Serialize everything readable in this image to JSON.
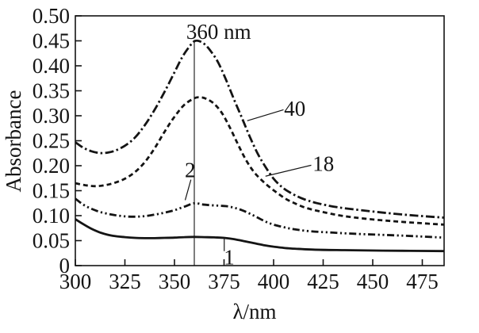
{
  "figure": {
    "background": "#ffffff",
    "ink_color": "#141414"
  },
  "chart_data": {
    "type": "line",
    "title": "",
    "xlabel": "λ/nm",
    "ylabel": "Absorbance",
    "xlim": [
      300,
      486
    ],
    "ylim": [
      0,
      0.5
    ],
    "grid": false,
    "legend_position": "none",
    "x_ticks": {
      "values": [
        300,
        325,
        350,
        375,
        400,
        425,
        450,
        475
      ],
      "labels": [
        "300",
        "325",
        "350",
        "375",
        "400",
        "425",
        "450",
        "475"
      ]
    },
    "y_ticks": {
      "values": [
        0,
        0.05,
        0.1,
        0.15,
        0.2,
        0.25,
        0.3,
        0.35,
        0.4,
        0.45,
        0.5
      ],
      "labels": [
        "0",
        "0.05",
        "0.10",
        "0.15",
        "0.20",
        "0.25",
        "0.30",
        "0.35",
        "0.40",
        "0.45",
        "0.50"
      ]
    },
    "vline": {
      "nm": 360,
      "top_A": 0.452,
      "bottom_A": 0,
      "label": "360 nm",
      "label_nm": 372.3,
      "label_A": 0.468
    },
    "series": [
      {
        "name": "1",
        "line_style": "solid",
        "points": [
          [
            300,
            0.093
          ],
          [
            304,
            0.083
          ],
          [
            308,
            0.074
          ],
          [
            312,
            0.067
          ],
          [
            316,
            0.062
          ],
          [
            320,
            0.059
          ],
          [
            325,
            0.057
          ],
          [
            330,
            0.0555
          ],
          [
            335,
            0.055
          ],
          [
            340,
            0.055
          ],
          [
            345,
            0.0555
          ],
          [
            350,
            0.056
          ],
          [
            355,
            0.057
          ],
          [
            360,
            0.0575
          ],
          [
            365,
            0.057
          ],
          [
            370,
            0.0565
          ],
          [
            375,
            0.0555
          ],
          [
            380,
            0.053
          ],
          [
            385,
            0.049
          ],
          [
            390,
            0.045
          ],
          [
            395,
            0.041
          ],
          [
            400,
            0.038
          ],
          [
            405,
            0.0355
          ],
          [
            410,
            0.034
          ],
          [
            420,
            0.032
          ],
          [
            435,
            0.031
          ],
          [
            455,
            0.03
          ],
          [
            486,
            0.029
          ]
        ]
      },
      {
        "name": "2",
        "line_style": "dash-dot-dot",
        "points": [
          [
            300,
            0.134
          ],
          [
            304,
            0.122
          ],
          [
            308,
            0.114
          ],
          [
            312,
            0.108
          ],
          [
            316,
            0.104
          ],
          [
            320,
            0.101
          ],
          [
            325,
            0.0985
          ],
          [
            330,
            0.098
          ],
          [
            335,
            0.099
          ],
          [
            340,
            0.102
          ],
          [
            345,
            0.106
          ],
          [
            350,
            0.111
          ],
          [
            355,
            0.118
          ],
          [
            360,
            0.125
          ],
          [
            364,
            0.1225
          ],
          [
            368,
            0.121
          ],
          [
            372,
            0.12
          ],
          [
            376,
            0.119
          ],
          [
            380,
            0.116
          ],
          [
            384,
            0.111
          ],
          [
            388,
            0.104
          ],
          [
            392,
            0.096
          ],
          [
            396,
            0.088
          ],
          [
            400,
            0.082
          ],
          [
            405,
            0.077
          ],
          [
            410,
            0.073
          ],
          [
            418,
            0.069
          ],
          [
            430,
            0.066
          ],
          [
            445,
            0.063
          ],
          [
            465,
            0.06
          ],
          [
            486,
            0.056
          ]
        ]
      },
      {
        "name": "18",
        "line_style": "dashed",
        "points": [
          [
            300,
            0.165
          ],
          [
            305,
            0.161
          ],
          [
            310,
            0.159
          ],
          [
            315,
            0.161
          ],
          [
            320,
            0.166
          ],
          [
            325,
            0.174
          ],
          [
            330,
            0.187
          ],
          [
            335,
            0.207
          ],
          [
            340,
            0.235
          ],
          [
            345,
            0.268
          ],
          [
            350,
            0.298
          ],
          [
            355,
            0.322
          ],
          [
            360,
            0.335
          ],
          [
            363,
            0.337
          ],
          [
            366,
            0.334
          ],
          [
            370,
            0.324
          ],
          [
            374,
            0.305
          ],
          [
            378,
            0.276
          ],
          [
            382,
            0.243
          ],
          [
            386,
            0.212
          ],
          [
            390,
            0.188
          ],
          [
            394,
            0.171
          ],
          [
            398,
            0.157
          ],
          [
            402,
            0.145
          ],
          [
            406,
            0.134
          ],
          [
            410,
            0.126
          ],
          [
            416,
            0.116
          ],
          [
            424,
            0.108
          ],
          [
            434,
            0.1
          ],
          [
            446,
            0.094
          ],
          [
            460,
            0.089
          ],
          [
            474,
            0.085
          ],
          [
            486,
            0.082
          ]
        ]
      },
      {
        "name": "40",
        "line_style": "dash-dot",
        "points": [
          [
            300,
            0.247
          ],
          [
            304,
            0.236
          ],
          [
            308,
            0.229
          ],
          [
            312,
            0.2255
          ],
          [
            316,
            0.226
          ],
          [
            320,
            0.23
          ],
          [
            325,
            0.24
          ],
          [
            330,
            0.256
          ],
          [
            335,
            0.281
          ],
          [
            340,
            0.312
          ],
          [
            345,
            0.348
          ],
          [
            350,
            0.387
          ],
          [
            354,
            0.418
          ],
          [
            358,
            0.441
          ],
          [
            360,
            0.449
          ],
          [
            362,
            0.45
          ],
          [
            365,
            0.444
          ],
          [
            368,
            0.431
          ],
          [
            372,
            0.407
          ],
          [
            376,
            0.372
          ],
          [
            380,
            0.333
          ],
          [
            384,
            0.296
          ],
          [
            388,
            0.258
          ],
          [
            392,
            0.224
          ],
          [
            396,
            0.197
          ],
          [
            400,
            0.174
          ],
          [
            404,
            0.158
          ],
          [
            408,
            0.147
          ],
          [
            414,
            0.135
          ],
          [
            422,
            0.125
          ],
          [
            432,
            0.117
          ],
          [
            444,
            0.111
          ],
          [
            458,
            0.105
          ],
          [
            472,
            0.1
          ],
          [
            486,
            0.096
          ]
        ]
      }
    ],
    "annotations": [
      {
        "text": "40",
        "label_nm": 410.7,
        "label_A": 0.314,
        "leader": [
          [
            405.0,
            0.312
          ],
          [
            386.7,
            0.29
          ]
        ]
      },
      {
        "text": "18",
        "label_nm": 425.1,
        "label_A": 0.204,
        "leader": [
          [
            419.0,
            0.201
          ],
          [
            395.9,
            0.179
          ]
        ]
      },
      {
        "text": "2",
        "label_nm": 357.9,
        "label_A": 0.191,
        "leader": [
          [
            358.3,
            0.172
          ],
          [
            355.4,
            0.131
          ]
        ]
      },
      {
        "text": "1",
        "label_nm": 377.6,
        "label_A": 0.017,
        "leader": [
          [
            375.1,
            0.056
          ],
          [
            375.1,
            0.029
          ]
        ]
      }
    ]
  }
}
